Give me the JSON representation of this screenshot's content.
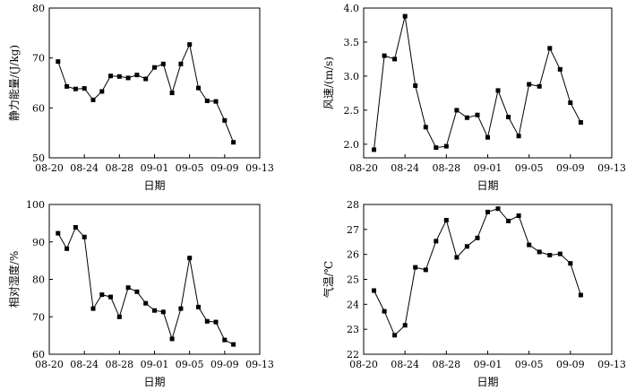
{
  "chart_data": [
    {
      "type": "line",
      "xlabel": "日期",
      "ylabel": "静力能量/(J/kg)",
      "xticks": [
        "08-20",
        "08-24",
        "08-28",
        "09-01",
        "09-05",
        "09-09",
        "09-13"
      ],
      "yticks": [
        "50",
        "60",
        "70",
        "80"
      ],
      "xlim": [
        0,
        24
      ],
      "ylim": [
        50,
        80
      ],
      "x": [
        1,
        2,
        3,
        4,
        5,
        6,
        7,
        8,
        9,
        10,
        11,
        12,
        13,
        14,
        15,
        16,
        17,
        18,
        19,
        20,
        21
      ],
      "values": [
        69.3,
        64.3,
        63.8,
        63.9,
        61.6,
        63.3,
        66.4,
        66.3,
        66.0,
        66.6,
        65.8,
        68.1,
        68.8,
        63.0,
        68.8,
        72.7,
        64.0,
        61.4,
        61.3,
        57.5,
        53.1
      ]
    },
    {
      "type": "line",
      "xlabel": "日期",
      "ylabel": "风速/(m/s)",
      "xticks": [
        "08-20",
        "08-24",
        "08-28",
        "09-01",
        "09-05",
        "09-09",
        "09-13"
      ],
      "yticks": [
        "2.0",
        "2.5",
        "3.0",
        "3.5",
        "4.0"
      ],
      "xlim": [
        0,
        24
      ],
      "ylim": [
        1.8,
        4.0
      ],
      "x": [
        1,
        2,
        3,
        4,
        5,
        6,
        7,
        8,
        9,
        10,
        11,
        12,
        13,
        14,
        15,
        16,
        17,
        18,
        19,
        20,
        21
      ],
      "values": [
        1.92,
        3.3,
        3.25,
        3.88,
        2.86,
        2.25,
        1.95,
        1.97,
        2.5,
        2.39,
        2.43,
        2.1,
        2.79,
        2.4,
        2.12,
        2.88,
        2.85,
        3.41,
        3.1,
        2.61,
        2.32
      ]
    },
    {
      "type": "line",
      "xlabel": "日期",
      "ylabel": "相对湿度/%",
      "xticks": [
        "08-20",
        "08-24",
        "08-28",
        "09-01",
        "09-05",
        "09-09",
        "09-13"
      ],
      "yticks": [
        "60",
        "70",
        "80",
        "90",
        "100"
      ],
      "xlim": [
        0,
        24
      ],
      "ylim": [
        60,
        100
      ],
      "x": [
        1,
        2,
        3,
        4,
        5,
        6,
        7,
        8,
        9,
        10,
        11,
        12,
        13,
        14,
        15,
        16,
        17,
        18,
        19,
        20,
        21
      ],
      "values": [
        92.3,
        88.2,
        93.9,
        91.3,
        72.2,
        75.9,
        75.3,
        70.0,
        77.8,
        76.7,
        73.6,
        71.7,
        71.3,
        64.1,
        72.2,
        85.7,
        72.6,
        68.8,
        68.6,
        63.8,
        62.6
      ]
    },
    {
      "type": "line",
      "xlabel": "日期",
      "ylabel": "气温/℃",
      "xticks": [
        "08-20",
        "08-24",
        "08-28",
        "09-01",
        "09-05",
        "09-09",
        "09-13"
      ],
      "yticks": [
        "22",
        "23",
        "24",
        "25",
        "26",
        "27",
        "28"
      ],
      "xlim": [
        0,
        24
      ],
      "ylim": [
        22,
        28
      ],
      "x": [
        1,
        2,
        3,
        4,
        5,
        6,
        7,
        8,
        9,
        10,
        11,
        12,
        13,
        14,
        15,
        16,
        17,
        18,
        19,
        20,
        21
      ],
      "values": [
        24.55,
        23.72,
        22.76,
        23.16,
        25.48,
        25.38,
        26.53,
        27.37,
        25.88,
        26.32,
        26.66,
        27.7,
        27.83,
        27.34,
        27.55,
        26.38,
        26.1,
        25.97,
        26.02,
        25.64,
        24.37
      ]
    }
  ]
}
